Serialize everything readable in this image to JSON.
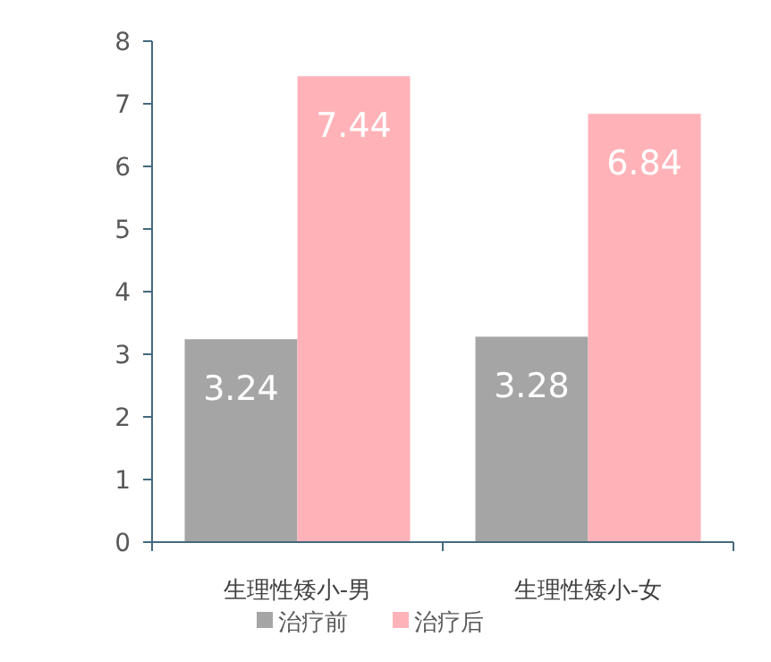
{
  "chart_data": {
    "type": "bar",
    "categories": [
      "生理性矮小-男",
      "生理性矮小-女"
    ],
    "series": [
      {
        "name": "治疗前",
        "color": "#a5a5a5",
        "values": [
          3.24,
          3.28
        ]
      },
      {
        "name": "治疗后",
        "color": "#ffb3b8",
        "values": [
          7.44,
          6.84
        ]
      }
    ],
    "ylim": [
      0,
      8
    ],
    "yticks": [
      0,
      1,
      2,
      3,
      4,
      5,
      6,
      7,
      8
    ],
    "data_labels": true,
    "legend": "bottom",
    "grid": false
  }
}
